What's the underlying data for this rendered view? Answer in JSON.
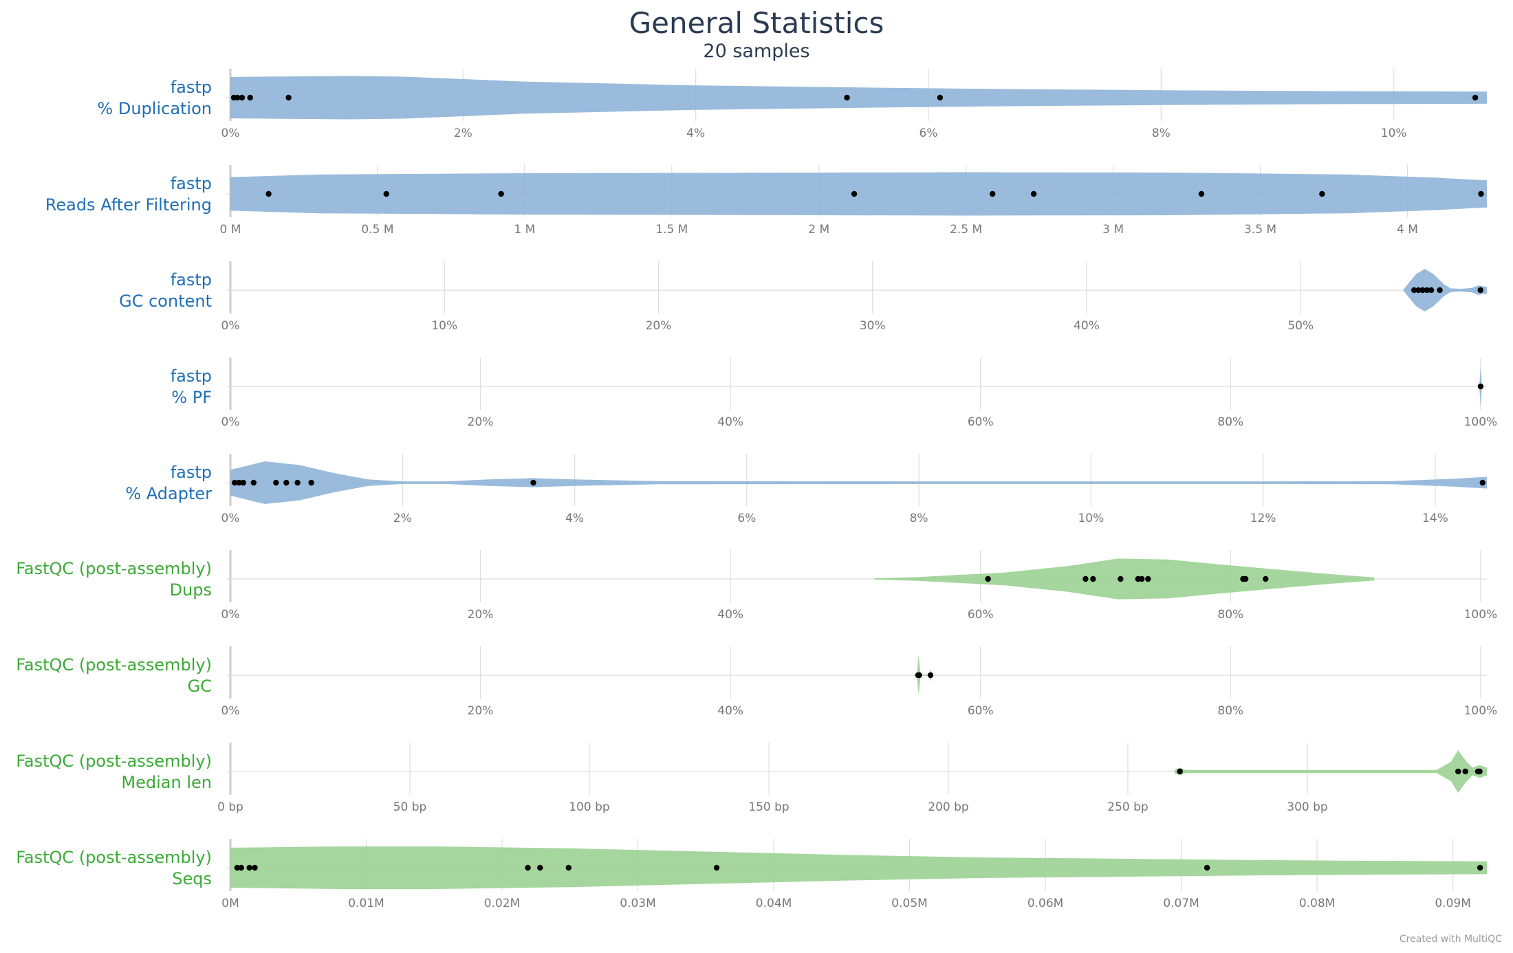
{
  "title": "General Statistics",
  "subtitle": "20 samples",
  "credit": "Created with MultiQC",
  "colors": {
    "fastp": "#1f6fb5",
    "fastqc": "#3aaa35",
    "fastp_fill": "#8fb4d8",
    "fastqc_fill": "#9bd292",
    "point": "#000000"
  },
  "chart_data": {
    "type": "violin",
    "rows": [
      {
        "group": "fastp",
        "metric": "% Duplication",
        "color_key": "fastp",
        "xlim": [
          0,
          10.8
        ],
        "ticks": [
          0,
          2,
          4,
          6,
          8,
          10
        ],
        "tick_labels": [
          "0%",
          "2%",
          "4%",
          "6%",
          "8%",
          "10%"
        ],
        "points": [
          0.03,
          0.06,
          0.1,
          0.17,
          0.5,
          5.3,
          6.1,
          10.7
        ],
        "density": [
          [
            0,
            0.64
          ],
          [
            1.0,
            0.67
          ],
          [
            1.5,
            0.65
          ],
          [
            2.5,
            0.5
          ],
          [
            4.0,
            0.38
          ],
          [
            5.5,
            0.31
          ],
          [
            6.5,
            0.27
          ],
          [
            8.0,
            0.23
          ],
          [
            9.5,
            0.2
          ],
          [
            10.8,
            0.19
          ]
        ]
      },
      {
        "group": "fastp",
        "metric": "Reads After Filtering",
        "color_key": "fastp",
        "xlim": [
          0,
          4.27
        ],
        "ticks": [
          0,
          0.5,
          1,
          1.5,
          2,
          2.5,
          3,
          3.5,
          4
        ],
        "tick_labels": [
          "0 M",
          "0.5 M",
          "1 M",
          "1.5 M",
          "2 M",
          "2.5 M",
          "3 M",
          "3.5 M",
          "4 M"
        ],
        "points": [
          0.13,
          0.53,
          0.92,
          2.12,
          2.59,
          2.73,
          3.3,
          3.71,
          4.25
        ],
        "density": [
          [
            0,
            0.52
          ],
          [
            0.3,
            0.6
          ],
          [
            1.0,
            0.64
          ],
          [
            1.5,
            0.65
          ],
          [
            2.5,
            0.67
          ],
          [
            3.2,
            0.66
          ],
          [
            3.8,
            0.6
          ],
          [
            4.1,
            0.5
          ],
          [
            4.27,
            0.42
          ]
        ]
      },
      {
        "group": "fastp",
        "metric": "GC content",
        "color_key": "fastp",
        "xlim": [
          0,
          58.7
        ],
        "ticks": [
          0,
          10,
          20,
          30,
          40,
          50
        ],
        "tick_labels": [
          "0%",
          "10%",
          "20%",
          "30%",
          "40%",
          "50%"
        ],
        "points": [
          55.3,
          55.5,
          55.7,
          55.9,
          56.1,
          56.5,
          58.4
        ],
        "density": [
          [
            54.8,
            0.02
          ],
          [
            55.0,
            0.18
          ],
          [
            55.4,
            0.5
          ],
          [
            55.8,
            0.66
          ],
          [
            56.2,
            0.5
          ],
          [
            56.7,
            0.18
          ],
          [
            57.0,
            0.06
          ],
          [
            57.5,
            0.04
          ],
          [
            58.0,
            0.07
          ],
          [
            58.3,
            0.15
          ],
          [
            58.7,
            0.1
          ]
        ]
      },
      {
        "group": "fastp",
        "metric": "% PF",
        "color_key": "fastp",
        "xlim": [
          0,
          100.5
        ],
        "ticks": [
          0,
          20,
          40,
          60,
          80,
          100
        ],
        "tick_labels": [
          "0%",
          "20%",
          "40%",
          "60%",
          "80%",
          "100%"
        ],
        "points": [
          100
        ],
        "density": [
          [
            99.9,
            0.02
          ],
          [
            100.0,
            0.62
          ],
          [
            100.1,
            0.02
          ]
        ]
      },
      {
        "group": "fastp",
        "metric": "% Adapter",
        "color_key": "fastp",
        "xlim": [
          0,
          14.6
        ],
        "ticks": [
          0,
          2,
          4,
          6,
          8,
          10,
          12,
          14
        ],
        "tick_labels": [
          "0%",
          "2%",
          "4%",
          "6%",
          "8%",
          "10%",
          "12%",
          "14%"
        ],
        "points": [
          0.05,
          0.1,
          0.15,
          0.27,
          0.53,
          0.65,
          0.78,
          0.94,
          3.52,
          14.55
        ],
        "density": [
          [
            0,
            0.4
          ],
          [
            0.4,
            0.66
          ],
          [
            0.8,
            0.55
          ],
          [
            1.2,
            0.3
          ],
          [
            1.6,
            0.1
          ],
          [
            2.0,
            0.04
          ],
          [
            2.5,
            0.04
          ],
          [
            3.0,
            0.1
          ],
          [
            3.5,
            0.14
          ],
          [
            4.0,
            0.1
          ],
          [
            5.0,
            0.05
          ],
          [
            8.0,
            0.04
          ],
          [
            12.0,
            0.04
          ],
          [
            13.5,
            0.05
          ],
          [
            14.2,
            0.12
          ],
          [
            14.6,
            0.18
          ]
        ]
      },
      {
        "group": "FastQC (post-assembly)",
        "metric": "Dups",
        "color_key": "fastqc",
        "xlim": [
          0,
          100.5
        ],
        "ticks": [
          0,
          20,
          40,
          60,
          80,
          100
        ],
        "tick_labels": [
          "0%",
          "20%",
          "40%",
          "60%",
          "80%",
          "100%"
        ],
        "points": [
          60.6,
          68.4,
          69.0,
          71.2,
          72.6,
          72.9,
          73.4,
          81.0,
          81.2,
          82.8
        ],
        "density": [
          [
            51.5,
            0.02
          ],
          [
            55.0,
            0.06
          ],
          [
            62.0,
            0.2
          ],
          [
            67.0,
            0.4
          ],
          [
            71.0,
            0.63
          ],
          [
            75.0,
            0.6
          ],
          [
            80.0,
            0.42
          ],
          [
            84.0,
            0.28
          ],
          [
            88.0,
            0.15
          ],
          [
            91.5,
            0.05
          ]
        ]
      },
      {
        "group": "FastQC (post-assembly)",
        "metric": "GC",
        "color_key": "fastqc",
        "xlim": [
          0,
          100.5
        ],
        "ticks": [
          0,
          20,
          40,
          60,
          80,
          100
        ],
        "tick_labels": [
          "0%",
          "20%",
          "40%",
          "60%",
          "80%",
          "100%"
        ],
        "points": [
          55.0,
          55.1,
          56.0
        ],
        "density": [
          [
            54.9,
            0.02
          ],
          [
            55.05,
            0.62
          ],
          [
            55.2,
            0.02
          ],
          [
            55.9,
            0.02
          ],
          [
            56.0,
            0.2
          ],
          [
            56.1,
            0.02
          ]
        ]
      },
      {
        "group": "FastQC (post-assembly)",
        "metric": "Median len",
        "color_key": "fastqc",
        "xlim": [
          0,
          350
        ],
        "ticks": [
          0,
          50,
          100,
          150,
          200,
          250,
          300
        ],
        "tick_labels": [
          "0 bp",
          "50 bp",
          "100 bp",
          "150 bp",
          "200 bp",
          "250 bp",
          "300 bp"
        ],
        "points": [
          264.5,
          342.0,
          344.0,
          347.5,
          348.0
        ],
        "density": [
          [
            263.0,
            0.06
          ],
          [
            264.5,
            0.12
          ],
          [
            266.0,
            0.05
          ],
          [
            290.0,
            0.05
          ],
          [
            336.0,
            0.05
          ],
          [
            340.0,
            0.3
          ],
          [
            342.0,
            0.66
          ],
          [
            344.0,
            0.35
          ],
          [
            346.0,
            0.12
          ],
          [
            348.0,
            0.2
          ],
          [
            350.0,
            0.12
          ]
        ]
      },
      {
        "group": "FastQC (post-assembly)",
        "metric": "Seqs",
        "color_key": "fastqc",
        "xlim": [
          0,
          0.0925
        ],
        "ticks": [
          0,
          0.01,
          0.02,
          0.03,
          0.04,
          0.05,
          0.06,
          0.07,
          0.08,
          0.09
        ],
        "tick_labels": [
          "0M",
          "0.01M",
          "0.02M",
          "0.03M",
          "0.04M",
          "0.05M",
          "0.06M",
          "0.07M",
          "0.08M",
          "0.09M"
        ],
        "points": [
          0.0005,
          0.0008,
          0.0014,
          0.0018,
          0.0219,
          0.0228,
          0.0249,
          0.0358,
          0.0719,
          0.092
        ],
        "density": [
          [
            0,
            0.62
          ],
          [
            0.008,
            0.66
          ],
          [
            0.015,
            0.66
          ],
          [
            0.025,
            0.6
          ],
          [
            0.035,
            0.5
          ],
          [
            0.045,
            0.4
          ],
          [
            0.055,
            0.32
          ],
          [
            0.065,
            0.28
          ],
          [
            0.075,
            0.24
          ],
          [
            0.085,
            0.21
          ],
          [
            0.0925,
            0.2
          ]
        ]
      }
    ]
  }
}
